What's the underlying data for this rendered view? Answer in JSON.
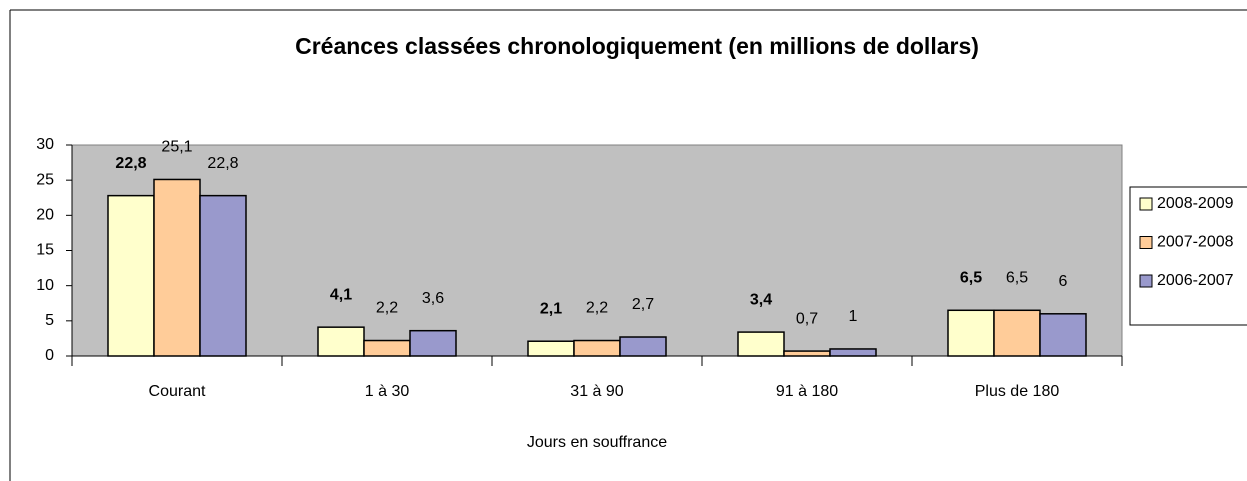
{
  "chart_data": {
    "type": "bar",
    "title": "Créances classées chronologiquement (en millions de dollars)",
    "x_label": "Jours en souffrance",
    "categories": [
      "Courant",
      "1 à 30",
      "31 à 90",
      "91 à 180",
      "Plus de 180"
    ],
    "series": [
      {
        "name": "2008-2009",
        "color": "#ffffcc",
        "values": [
          22.8,
          4.1,
          2.1,
          3.4,
          6.5
        ],
        "value_labels": [
          "22,8",
          "4,1",
          "2,1",
          "3,4",
          "6,5"
        ],
        "bold_labels": true
      },
      {
        "name": "2007-2008",
        "color": "#ffcc99",
        "values": [
          25.1,
          2.2,
          2.2,
          0.7,
          6.5
        ],
        "value_labels": [
          "25,1",
          "2,2",
          "2,2",
          "0,7",
          "6,5"
        ]
      },
      {
        "name": "2006-2007",
        "color": "#9999cc",
        "values": [
          22.8,
          3.6,
          2.7,
          1,
          6
        ],
        "value_labels": [
          "22,8",
          "3,6",
          "2,7",
          "1",
          "6"
        ]
      }
    ],
    "ylim": [
      0,
      30
    ],
    "yticks": [
      0,
      5,
      10,
      15,
      20,
      25,
      30
    ],
    "legend": "right",
    "plot_background": "#c0c0c0"
  }
}
